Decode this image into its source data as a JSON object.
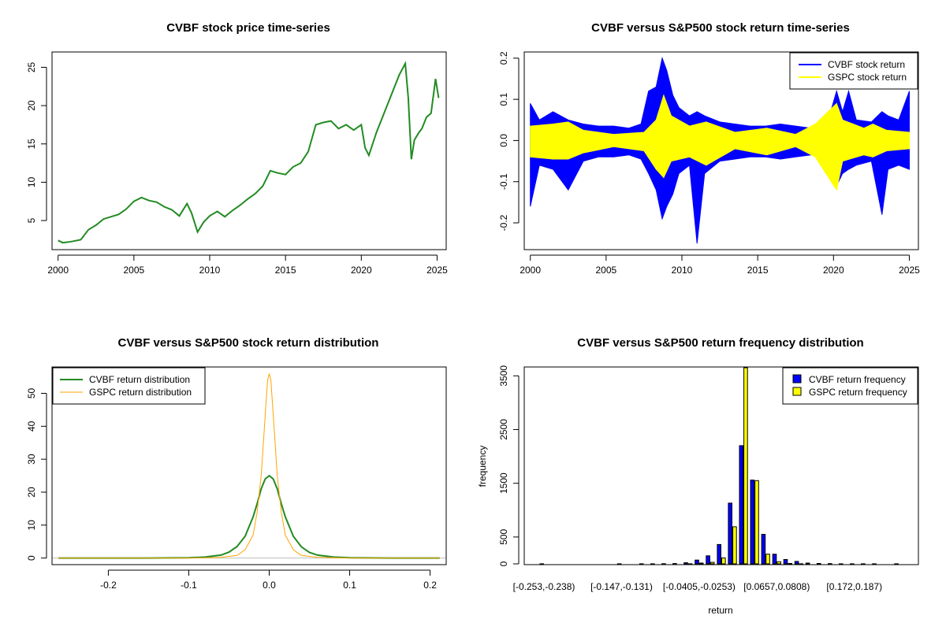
{
  "chart_data": [
    {
      "id": "price",
      "type": "line",
      "title": "CVBF stock price time-series",
      "xlabel": "",
      "ylabel": "",
      "xlim": [
        1999.6,
        2025.6
      ],
      "ylim": [
        1.2,
        27.0
      ],
      "x_ticks": [
        2000,
        2005,
        2010,
        2015,
        2020,
        2025
      ],
      "x_tick_labels": [
        "2000",
        "2005",
        "2010",
        "2015",
        "2020",
        "2025"
      ],
      "y_ticks": [
        5,
        10,
        15,
        20,
        25
      ],
      "y_tick_labels": [
        "5",
        "10",
        "15",
        "20",
        "25"
      ],
      "series": [
        {
          "color": "#228b22",
          "x": [
            2000.0,
            2000.3,
            2000.7,
            2001.0,
            2001.5,
            2002.0,
            2002.5,
            2003.0,
            2003.5,
            2004.0,
            2004.5,
            2005.0,
            2005.5,
            2006.0,
            2006.5,
            2007.0,
            2007.5,
            2008.0,
            2008.5,
            2008.8,
            2009.2,
            2009.6,
            2010.0,
            2010.5,
            2011.0,
            2011.5,
            2012.0,
            2012.5,
            2013.0,
            2013.5,
            2014.0,
            2014.5,
            2015.0,
            2015.5,
            2016.0,
            2016.5,
            2017.0,
            2017.5,
            2018.0,
            2018.5,
            2019.0,
            2019.5,
            2020.0,
            2020.25,
            2020.5,
            2021.0,
            2021.5,
            2022.0,
            2022.5,
            2022.9,
            2023.1,
            2023.3,
            2023.5,
            2023.8,
            2024.0,
            2024.3,
            2024.6,
            2024.9,
            2025.1
          ],
          "y": [
            2.4,
            2.1,
            2.2,
            2.3,
            2.5,
            3.8,
            4.4,
            5.2,
            5.5,
            5.8,
            6.5,
            7.5,
            8.0,
            7.6,
            7.4,
            6.8,
            6.4,
            5.6,
            7.2,
            6.0,
            3.5,
            4.8,
            5.6,
            6.2,
            5.5,
            6.3,
            7.0,
            7.8,
            8.5,
            9.5,
            11.5,
            11.2,
            11.0,
            12.0,
            12.5,
            14.0,
            17.5,
            17.8,
            18.0,
            17.0,
            17.5,
            16.8,
            17.5,
            14.5,
            13.5,
            16.5,
            19.0,
            21.5,
            24.0,
            25.5,
            21.0,
            13.0,
            15.5,
            16.5,
            17.0,
            18.5,
            19.0,
            23.5,
            21.0
          ]
        }
      ]
    },
    {
      "id": "returns",
      "type": "line",
      "title": "CVBF versus S&P500 stock return time-series",
      "xlabel": "",
      "ylabel": "",
      "xlim": [
        1999.6,
        2025.6
      ],
      "ylim": [
        -0.265,
        0.215
      ],
      "x_ticks": [
        2000,
        2005,
        2010,
        2015,
        2020,
        2025
      ],
      "x_tick_labels": [
        "2000",
        "2005",
        "2010",
        "2015",
        "2020",
        "2025"
      ],
      "y_ticks": [
        -0.2,
        -0.1,
        0.0,
        0.1,
        0.2
      ],
      "y_tick_labels": [
        "-0.2",
        "-0.1",
        "0.0",
        "0.1",
        "0.2"
      ],
      "legend_position": "top-right",
      "series": [
        {
          "name": "CVBF stock return",
          "color": "#0000ff",
          "x": [
            2000.0,
            2000.6,
            2001.5,
            2002.5,
            2003.5,
            2004.5,
            2005.5,
            2006.5,
            2007.3,
            2007.8,
            2008.3,
            2008.7,
            2009.0,
            2009.4,
            2009.8,
            2010.5,
            2011.0,
            2011.5,
            2012.5,
            2013.5,
            2014.5,
            2015.5,
            2016.5,
            2017.5,
            2018.5,
            2019.5,
            2020.2,
            2020.6,
            2021.0,
            2021.5,
            2022.5,
            2023.2,
            2023.6,
            2024.3,
            2025.0
          ],
          "upper": [
            0.09,
            0.05,
            0.07,
            0.05,
            0.04,
            0.035,
            0.035,
            0.03,
            0.04,
            0.12,
            0.13,
            0.2,
            0.17,
            0.11,
            0.08,
            0.06,
            0.07,
            0.06,
            0.045,
            0.04,
            0.035,
            0.035,
            0.04,
            0.035,
            0.03,
            0.03,
            0.12,
            0.07,
            0.12,
            0.05,
            0.045,
            0.07,
            0.06,
            0.05,
            0.12
          ],
          "lower": [
            -0.16,
            -0.06,
            -0.07,
            -0.12,
            -0.05,
            -0.04,
            -0.04,
            -0.035,
            -0.045,
            -0.08,
            -0.12,
            -0.19,
            -0.16,
            -0.13,
            -0.08,
            -0.06,
            -0.25,
            -0.08,
            -0.05,
            -0.045,
            -0.04,
            -0.04,
            -0.045,
            -0.04,
            -0.035,
            -0.035,
            -0.11,
            -0.08,
            -0.07,
            -0.06,
            -0.05,
            -0.18,
            -0.07,
            -0.06,
            -0.07
          ]
        },
        {
          "name": "GSPC stock return",
          "color": "#ffff00",
          "x": [
            2000.0,
            2001.5,
            2002.5,
            2003.5,
            2005.5,
            2007.5,
            2008.3,
            2008.8,
            2009.3,
            2010.5,
            2011.6,
            2013.5,
            2015.6,
            2017.5,
            2018.8,
            2020.2,
            2020.6,
            2022.0,
            2022.6,
            2023.5,
            2025.0
          ],
          "upper": [
            0.035,
            0.04,
            0.045,
            0.025,
            0.015,
            0.02,
            0.05,
            0.11,
            0.06,
            0.035,
            0.045,
            0.02,
            0.03,
            0.015,
            0.04,
            0.09,
            0.05,
            0.03,
            0.04,
            0.025,
            0.02
          ],
          "lower": [
            -0.04,
            -0.045,
            -0.045,
            -0.03,
            -0.015,
            -0.025,
            -0.07,
            -0.09,
            -0.05,
            -0.04,
            -0.06,
            -0.02,
            -0.035,
            -0.015,
            -0.04,
            -0.12,
            -0.05,
            -0.035,
            -0.04,
            -0.025,
            -0.02
          ]
        }
      ]
    },
    {
      "id": "density",
      "type": "line",
      "title": "CVBF versus S&P500 stock return distribution",
      "xlabel": "",
      "ylabel": "",
      "xlim": [
        -0.27,
        0.22
      ],
      "ylim": [
        -2.0,
        58.0
      ],
      "x_ticks": [
        -0.2,
        -0.1,
        0.0,
        0.1,
        0.2
      ],
      "x_tick_labels": [
        "-0.2",
        "-0.1",
        "0.0",
        "0.1",
        "0.2"
      ],
      "y_ticks": [
        0,
        10,
        20,
        30,
        40,
        50
      ],
      "y_tick_labels": [
        "0",
        "10",
        "20",
        "30",
        "40",
        "50"
      ],
      "legend_position": "top-left",
      "series": [
        {
          "name": "CVBF return distribution",
          "color": "#228b22",
          "x": [
            -0.262,
            -0.15,
            -0.1,
            -0.08,
            -0.06,
            -0.05,
            -0.04,
            -0.03,
            -0.02,
            -0.015,
            -0.01,
            -0.005,
            0.0,
            0.005,
            0.01,
            0.015,
            0.02,
            0.03,
            0.04,
            0.05,
            0.06,
            0.08,
            0.1,
            0.15,
            0.212
          ],
          "y": [
            0.0,
            0.0,
            0.1,
            0.3,
            0.9,
            1.8,
            3.5,
            6.6,
            12.5,
            16.5,
            21.0,
            24.0,
            25.0,
            24.0,
            21.0,
            16.5,
            12.5,
            6.6,
            3.4,
            1.7,
            0.9,
            0.3,
            0.1,
            0.0,
            0.0
          ]
        },
        {
          "name": "GSPC return distribution",
          "color": "#ffa500",
          "x": [
            -0.262,
            -0.1,
            -0.06,
            -0.04,
            -0.03,
            -0.02,
            -0.015,
            -0.01,
            -0.007,
            -0.004,
            -0.002,
            0.0,
            0.002,
            0.004,
            0.007,
            0.01,
            0.015,
            0.02,
            0.03,
            0.04,
            0.06,
            0.1,
            0.212
          ],
          "y": [
            0.0,
            0.0,
            0.2,
            0.8,
            2.5,
            7.0,
            14.0,
            25.0,
            36.0,
            47.0,
            54.0,
            56.0,
            54.0,
            47.0,
            36.0,
            25.0,
            14.0,
            7.0,
            2.5,
            0.8,
            0.2,
            0.0,
            0.0
          ]
        }
      ]
    },
    {
      "id": "frequency",
      "type": "bar",
      "title": "CVBF versus S&P500 return frequency distribution",
      "xlabel": "return",
      "ylabel": "frequency",
      "ylim": [
        0,
        3650
      ],
      "y_ticks": [
        0,
        500,
        1500,
        2500,
        3500
      ],
      "y_tick_labels": [
        "0",
        "500",
        "1500",
        "2500",
        "3500"
      ],
      "x_tick_labels": [
        "[-0.253,-0.238)",
        "[-0.147,-0.131)",
        "[-0.0405,-0.0253)",
        "[0.0657,0.0808)",
        "[0.172,0.187)"
      ],
      "x_tick_bins": [
        0,
        7,
        14,
        21,
        28
      ],
      "legend_position": "top-right",
      "series": [
        {
          "name": "CVBF return frequency",
          "color": "#0000ff",
          "values": [
            1,
            0,
            0,
            0,
            0,
            0,
            0,
            1,
            0,
            1,
            2,
            3,
            6,
            20,
            70,
            150,
            360,
            1130,
            2200,
            1560,
            550,
            180,
            80,
            45,
            15,
            8,
            5,
            2,
            1,
            1,
            1,
            0,
            2
          ]
        },
        {
          "name": "GSPC return frequency",
          "color": "#ffff00",
          "values": [
            0,
            0,
            0,
            0,
            0,
            0,
            0,
            0,
            0,
            0,
            0,
            0,
            0,
            2,
            15,
            30,
            110,
            690,
            3650,
            1550,
            180,
            40,
            8,
            2,
            0,
            0,
            0,
            0,
            0,
            0,
            0,
            0,
            0
          ]
        }
      ]
    }
  ]
}
